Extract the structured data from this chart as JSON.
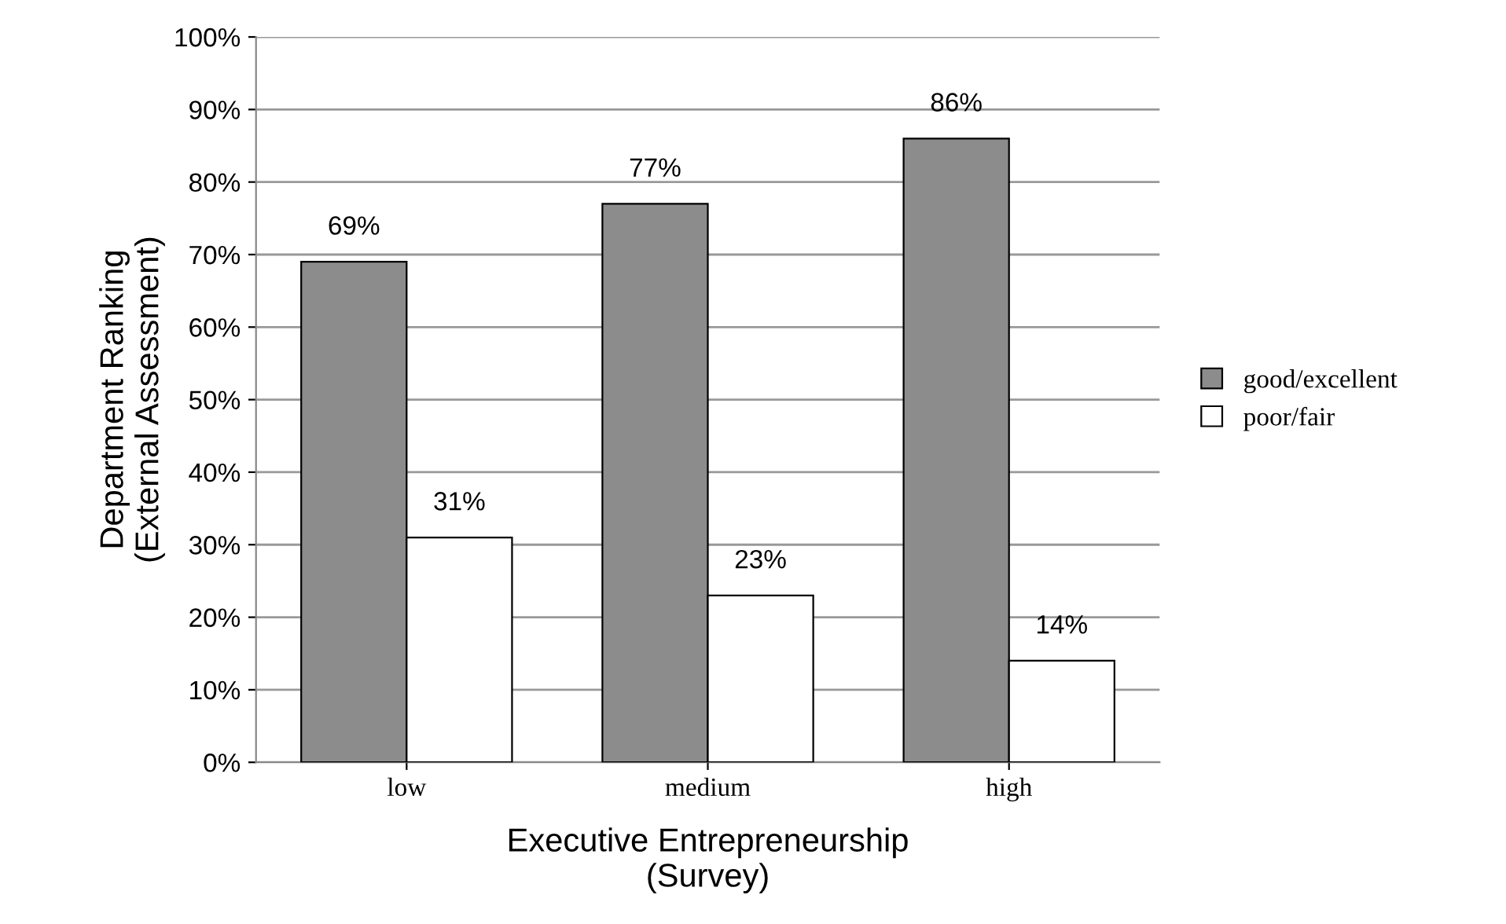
{
  "chart_data": {
    "type": "bar",
    "xlabel": "Executive Entrepreneurship\n(Survey)",
    "ylabel": "Department Ranking\n(External Assessment)",
    "categories": [
      "low",
      "medium",
      "high"
    ],
    "series": [
      {
        "name": "good/excellent",
        "color": "#8c8c8c",
        "values": [
          69,
          77,
          86
        ],
        "value_labels": [
          "69%",
          "77%",
          "86%"
        ]
      },
      {
        "name": "poor/fair",
        "color": "#ffffff",
        "values": [
          31,
          23,
          14
        ],
        "value_labels": [
          "31%",
          "23%",
          "14%"
        ]
      }
    ],
    "ylim": [
      0,
      100
    ],
    "yticks": [
      {
        "value": 0,
        "label": "0%"
      },
      {
        "value": 10,
        "label": "10%"
      },
      {
        "value": 20,
        "label": "20%"
      },
      {
        "value": 30,
        "label": "30%"
      },
      {
        "value": 40,
        "label": "40%"
      },
      {
        "value": 50,
        "label": "50%"
      },
      {
        "value": 60,
        "label": "60%"
      },
      {
        "value": 70,
        "label": "70%"
      },
      {
        "value": 80,
        "label": "80%"
      },
      {
        "value": 90,
        "label": "90%"
      },
      {
        "value": 100,
        "label": "100%"
      }
    ],
    "grid": "y",
    "legend": "right"
  }
}
